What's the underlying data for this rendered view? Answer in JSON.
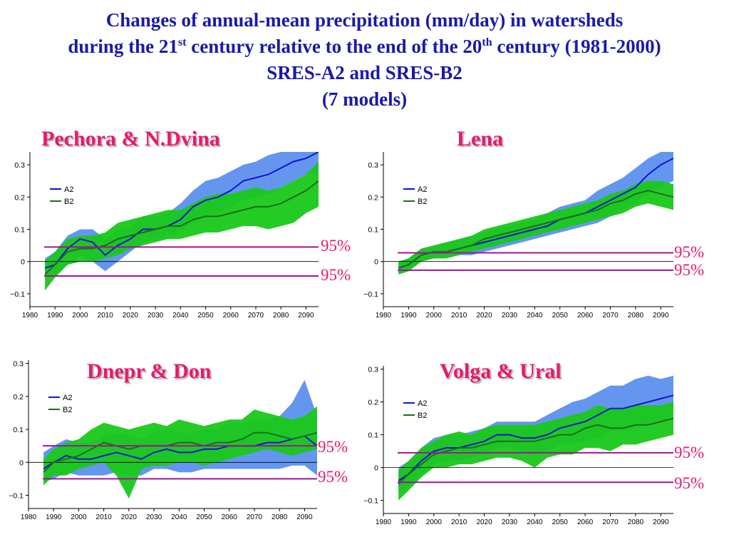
{
  "title": {
    "line1": "Changes of annual-mean precipitation (mm/day) in watersheds",
    "line2_a": "during  the 21",
    "line2_sup1": "st",
    "line2_b": " century relative to the end of the 20",
    "line2_sup2": "th",
    "line2_c": " century (1981-2000)",
    "line3": "SRES-A2 and SRES-B2",
    "line4": "(7 models)"
  },
  "colors": {
    "a2_line": "#1414d2",
    "a2_band": "#6496f0",
    "b2_line": "#1e6e1e",
    "b2_band": "#19c819",
    "overlap": "#3c8282",
    "threshold": "#a0149b",
    "title": "#1a1aa8",
    "panel_title": "#e8196e"
  },
  "significance_label": "95%",
  "chart_data": [
    {
      "type": "area",
      "title": "Pechora & N.Dvina",
      "legend": [
        "A2",
        "B2"
      ],
      "legend_position": "top-left",
      "x_ticks": [
        1980,
        1990,
        2000,
        2010,
        2020,
        2030,
        2040,
        2050,
        2060,
        2070,
        2080,
        2090
      ],
      "y_ticks": [
        -0.1,
        0,
        0.1,
        0.2,
        0.3
      ],
      "xlim": [
        1980,
        2095
      ],
      "ylim": [
        -0.14,
        0.34
      ],
      "significance_levels": [
        0.045,
        -0.045
      ],
      "x": [
        1986,
        1990,
        1995,
        2000,
        2005,
        2010,
        2015,
        2020,
        2025,
        2030,
        2035,
        2040,
        2045,
        2050,
        2055,
        2060,
        2065,
        2070,
        2075,
        2080,
        2085,
        2090,
        2095
      ],
      "series": [
        {
          "name": "A2",
          "mean": [
            -0.02,
            -0.01,
            0.04,
            0.07,
            0.06,
            0.02,
            0.05,
            0.07,
            0.1,
            0.1,
            0.11,
            0.13,
            0.17,
            0.19,
            0.2,
            0.22,
            0.25,
            0.26,
            0.27,
            0.29,
            0.31,
            0.32,
            0.34
          ],
          "low": [
            -0.05,
            -0.04,
            -0.01,
            0.02,
            0.0,
            -0.03,
            0.0,
            0.03,
            0.06,
            0.07,
            0.08,
            0.09,
            0.12,
            0.14,
            0.15,
            0.17,
            0.19,
            0.2,
            0.21,
            0.23,
            0.25,
            0.27,
            0.28
          ],
          "high": [
            0.01,
            0.03,
            0.08,
            0.1,
            0.1,
            0.07,
            0.1,
            0.11,
            0.14,
            0.14,
            0.15,
            0.18,
            0.22,
            0.25,
            0.26,
            0.28,
            0.3,
            0.31,
            0.33,
            0.34,
            0.34,
            0.34,
            0.34
          ]
        },
        {
          "name": "B2",
          "mean": [
            -0.04,
            -0.01,
            0.03,
            0.04,
            0.04,
            0.05,
            0.07,
            0.08,
            0.09,
            0.1,
            0.11,
            0.11,
            0.13,
            0.14,
            0.14,
            0.15,
            0.16,
            0.17,
            0.17,
            0.18,
            0.2,
            0.22,
            0.25
          ],
          "low": [
            -0.09,
            -0.05,
            -0.01,
            0.0,
            0.0,
            0.01,
            0.02,
            0.04,
            0.05,
            0.06,
            0.07,
            0.07,
            0.08,
            0.09,
            0.09,
            0.1,
            0.11,
            0.11,
            0.1,
            0.11,
            0.12,
            0.15,
            0.17
          ],
          "high": [
            0.0,
            0.03,
            0.07,
            0.08,
            0.08,
            0.09,
            0.12,
            0.13,
            0.14,
            0.15,
            0.16,
            0.16,
            0.18,
            0.2,
            0.21,
            0.21,
            0.22,
            0.23,
            0.22,
            0.23,
            0.25,
            0.27,
            0.31
          ]
        }
      ]
    },
    {
      "type": "area",
      "title": "Lena",
      "legend": [
        "A2",
        "B2"
      ],
      "legend_position": "top-left",
      "x_ticks": [
        1980,
        1990,
        2000,
        2010,
        2020,
        2030,
        2040,
        2050,
        2060,
        2070,
        2080,
        2090
      ],
      "y_ticks": [
        -0.1,
        0,
        0.1,
        0.2,
        0.3
      ],
      "xlim": [
        1980,
        2095
      ],
      "ylim": [
        -0.14,
        0.34
      ],
      "significance_levels": [
        0.027,
        -0.027
      ],
      "x": [
        1986,
        1990,
        1995,
        2000,
        2005,
        2010,
        2015,
        2020,
        2025,
        2030,
        2035,
        2040,
        2045,
        2050,
        2055,
        2060,
        2065,
        2070,
        2075,
        2080,
        2085,
        2090,
        2095
      ],
      "series": [
        {
          "name": "A2",
          "mean": [
            -0.02,
            -0.01,
            0.02,
            0.03,
            0.03,
            0.04,
            0.05,
            0.06,
            0.07,
            0.08,
            0.09,
            0.1,
            0.11,
            0.13,
            0.14,
            0.15,
            0.17,
            0.19,
            0.21,
            0.23,
            0.27,
            0.3,
            0.32
          ],
          "low": [
            -0.04,
            -0.03,
            0.0,
            0.01,
            0.01,
            0.02,
            0.02,
            0.03,
            0.04,
            0.05,
            0.06,
            0.07,
            0.08,
            0.09,
            0.1,
            0.11,
            0.12,
            0.14,
            0.16,
            0.18,
            0.21,
            0.23,
            0.25
          ],
          "high": [
            0.0,
            0.01,
            0.04,
            0.05,
            0.06,
            0.07,
            0.08,
            0.09,
            0.1,
            0.11,
            0.12,
            0.13,
            0.15,
            0.17,
            0.18,
            0.19,
            0.22,
            0.24,
            0.26,
            0.29,
            0.32,
            0.34,
            0.34
          ]
        },
        {
          "name": "B2",
          "mean": [
            -0.02,
            -0.01,
            0.02,
            0.03,
            0.03,
            0.04,
            0.05,
            0.07,
            0.08,
            0.09,
            0.1,
            0.11,
            0.12,
            0.13,
            0.14,
            0.15,
            0.16,
            0.18,
            0.19,
            0.21,
            0.22,
            0.21,
            0.2
          ],
          "low": [
            -0.04,
            -0.03,
            0.0,
            0.01,
            0.01,
            0.02,
            0.03,
            0.04,
            0.05,
            0.06,
            0.07,
            0.08,
            0.09,
            0.1,
            0.11,
            0.12,
            0.13,
            0.14,
            0.15,
            0.17,
            0.18,
            0.17,
            0.16
          ],
          "high": [
            0.0,
            0.01,
            0.04,
            0.05,
            0.06,
            0.07,
            0.08,
            0.1,
            0.11,
            0.12,
            0.13,
            0.14,
            0.15,
            0.16,
            0.17,
            0.18,
            0.19,
            0.21,
            0.22,
            0.24,
            0.25,
            0.25,
            0.24
          ]
        }
      ]
    },
    {
      "type": "area",
      "title": "Dnepr & Don",
      "legend": [
        "A2",
        "B2"
      ],
      "legend_position": "top-left",
      "x_ticks": [
        1980,
        1990,
        2000,
        2010,
        2020,
        2030,
        2040,
        2050,
        2060,
        2070,
        2080,
        2090
      ],
      "y_ticks": [
        -0.1,
        0,
        0.1,
        0.2,
        0.3
      ],
      "xlim": [
        1980,
        2095
      ],
      "ylim": [
        -0.14,
        0.31
      ],
      "significance_levels": [
        0.05,
        -0.05
      ],
      "x": [
        1986,
        1990,
        1995,
        2000,
        2005,
        2010,
        2015,
        2020,
        2025,
        2030,
        2035,
        2040,
        2045,
        2050,
        2055,
        2060,
        2065,
        2070,
        2075,
        2080,
        2085,
        2090,
        2095
      ],
      "series": [
        {
          "name": "A2",
          "mean": [
            -0.02,
            0.0,
            0.02,
            0.01,
            0.01,
            0.02,
            0.03,
            0.02,
            0.01,
            0.03,
            0.04,
            0.03,
            0.03,
            0.04,
            0.04,
            0.05,
            0.05,
            0.05,
            0.06,
            0.06,
            0.07,
            0.08,
            0.05
          ],
          "low": [
            -0.06,
            -0.05,
            -0.03,
            -0.04,
            -0.04,
            -0.04,
            -0.03,
            -0.04,
            -0.04,
            -0.02,
            -0.02,
            -0.03,
            -0.03,
            -0.02,
            -0.02,
            -0.02,
            -0.02,
            -0.02,
            -0.02,
            -0.02,
            -0.01,
            -0.01,
            -0.04
          ],
          "high": [
            0.03,
            0.05,
            0.07,
            0.06,
            0.06,
            0.08,
            0.09,
            0.08,
            0.07,
            0.09,
            0.1,
            0.09,
            0.09,
            0.1,
            0.1,
            0.12,
            0.12,
            0.13,
            0.13,
            0.14,
            0.18,
            0.25,
            0.14
          ]
        },
        {
          "name": "B2",
          "mean": [
            -0.03,
            0.0,
            0.01,
            0.02,
            0.04,
            0.06,
            0.05,
            0.04,
            0.05,
            0.05,
            0.05,
            0.06,
            0.06,
            0.05,
            0.06,
            0.06,
            0.07,
            0.09,
            0.09,
            0.08,
            0.07,
            0.08,
            0.09
          ],
          "low": [
            -0.07,
            -0.04,
            -0.04,
            -0.02,
            -0.01,
            0.0,
            -0.04,
            -0.11,
            -0.02,
            -0.01,
            -0.01,
            0.0,
            0.0,
            -0.01,
            0.0,
            0.01,
            0.02,
            0.03,
            0.04,
            0.03,
            0.02,
            0.03,
            0.04
          ],
          "high": [
            0.01,
            0.04,
            0.06,
            0.07,
            0.1,
            0.12,
            0.11,
            0.1,
            0.11,
            0.12,
            0.11,
            0.13,
            0.12,
            0.11,
            0.12,
            0.13,
            0.13,
            0.16,
            0.15,
            0.14,
            0.13,
            0.14,
            0.17
          ]
        }
      ]
    },
    {
      "type": "area",
      "title": "Volga & Ural",
      "legend": [
        "A2",
        "B2"
      ],
      "legend_position": "top-left",
      "x_ticks": [
        1980,
        1990,
        2000,
        2010,
        2020,
        2030,
        2040,
        2050,
        2060,
        2070,
        2080,
        2090
      ],
      "y_ticks": [
        -0.1,
        0,
        0.1,
        0.2,
        0.3
      ],
      "xlim": [
        1980,
        2095
      ],
      "ylim": [
        -0.14,
        0.31
      ],
      "significance_levels": [
        0.045,
        -0.045
      ],
      "x": [
        1986,
        1990,
        1995,
        2000,
        2005,
        2010,
        2015,
        2020,
        2025,
        2030,
        2035,
        2040,
        2045,
        2050,
        2055,
        2060,
        2065,
        2070,
        2075,
        2080,
        2085,
        2090,
        2095
      ],
      "series": [
        {
          "name": "A2",
          "mean": [
            -0.04,
            -0.02,
            0.02,
            0.05,
            0.06,
            0.06,
            0.07,
            0.08,
            0.1,
            0.1,
            0.09,
            0.09,
            0.1,
            0.12,
            0.13,
            0.14,
            0.16,
            0.18,
            0.18,
            0.19,
            0.2,
            0.21,
            0.22
          ],
          "low": [
            -0.08,
            -0.06,
            -0.02,
            0.01,
            0.02,
            0.02,
            0.03,
            0.04,
            0.06,
            0.06,
            0.05,
            0.04,
            0.05,
            0.07,
            0.07,
            0.08,
            0.09,
            0.11,
            0.11,
            0.12,
            0.13,
            0.14,
            0.16
          ],
          "high": [
            0.0,
            0.02,
            0.06,
            0.09,
            0.1,
            0.1,
            0.11,
            0.12,
            0.14,
            0.14,
            0.14,
            0.14,
            0.16,
            0.18,
            0.2,
            0.21,
            0.23,
            0.25,
            0.25,
            0.27,
            0.28,
            0.27,
            0.28
          ]
        },
        {
          "name": "B2",
          "mean": [
            -0.05,
            -0.02,
            0.01,
            0.04,
            0.05,
            0.06,
            0.06,
            0.07,
            0.08,
            0.08,
            0.08,
            0.08,
            0.09,
            0.1,
            0.1,
            0.12,
            0.13,
            0.12,
            0.12,
            0.13,
            0.13,
            0.14,
            0.15
          ],
          "low": [
            -0.1,
            -0.07,
            -0.03,
            0.0,
            0.0,
            0.01,
            0.01,
            0.02,
            0.03,
            0.03,
            0.02,
            0.0,
            0.03,
            0.04,
            0.04,
            0.06,
            0.06,
            0.05,
            0.07,
            0.07,
            0.08,
            0.09,
            0.1
          ],
          "high": [
            -0.01,
            0.02,
            0.06,
            0.08,
            0.1,
            0.11,
            0.1,
            0.12,
            0.13,
            0.13,
            0.13,
            0.13,
            0.14,
            0.15,
            0.16,
            0.17,
            0.19,
            0.18,
            0.18,
            0.19,
            0.19,
            0.19,
            0.2
          ]
        }
      ]
    }
  ]
}
